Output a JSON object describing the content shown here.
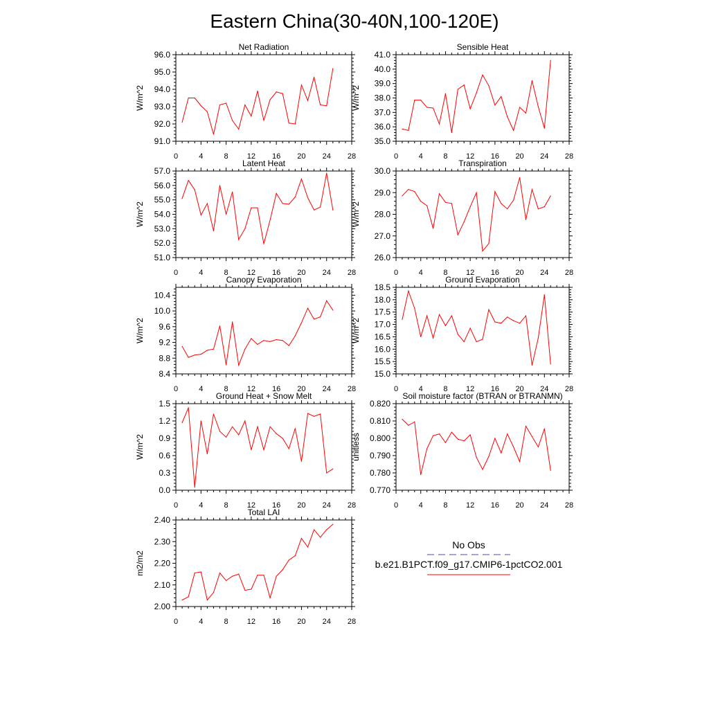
{
  "figure": {
    "title": "Eastern China(30-40N,100-120E)"
  },
  "legend": {
    "entries": [
      {
        "name": "No Obs",
        "color": "#4a4a9a",
        "dash": true
      },
      {
        "name": "b.e21.B1PCT.f09_g17.CMIP6-1pctCO2.001",
        "color": "#ff0000",
        "dash": false
      }
    ]
  },
  "colors": {
    "series": "#ff0000",
    "axes": "#000000"
  },
  "chart_data": [
    {
      "type": "line",
      "title": "Net Radiation",
      "ylabel": "W/m^2",
      "xlim": [
        0,
        28
      ],
      "xticks": [
        0,
        4,
        8,
        12,
        16,
        20,
        24,
        28
      ],
      "ylim": [
        91.0,
        96.0
      ],
      "yticks": [
        "91.0",
        "92.0",
        "93.0",
        "94.0",
        "95.0",
        "96.0"
      ],
      "series": [
        {
          "name": "b.e21.B1PCT.f09_g17.CMIP6-1pctCO2.001",
          "x": [
            1,
            2,
            3,
            4,
            5,
            6,
            7,
            8,
            9,
            10,
            11,
            12,
            13,
            14,
            15,
            16,
            17,
            18,
            19,
            20,
            21,
            22,
            23,
            24,
            25
          ],
          "values": [
            92.1,
            93.5,
            93.5,
            93.05,
            92.7,
            91.4,
            93.1,
            93.2,
            92.2,
            91.7,
            93.1,
            92.45,
            93.9,
            92.2,
            93.4,
            93.85,
            93.75,
            92.05,
            92.0,
            94.25,
            93.35,
            94.7,
            93.1,
            93.05,
            95.2
          ]
        }
      ]
    },
    {
      "type": "line",
      "title": "Sensible Heat",
      "ylabel": "W/m^2",
      "xlim": [
        0,
        28
      ],
      "xticks": [
        0,
        4,
        8,
        12,
        16,
        20,
        24,
        28
      ],
      "ylim": [
        35.0,
        41.0
      ],
      "yticks": [
        "35.0",
        "36.0",
        "37.0",
        "38.0",
        "39.0",
        "40.0",
        "41.0"
      ],
      "series": [
        {
          "name": "b.e21.B1PCT.f09_g17.CMIP6-1pctCO2.001",
          "x": [
            1,
            2,
            3,
            4,
            5,
            6,
            7,
            8,
            9,
            10,
            11,
            12,
            13,
            14,
            15,
            16,
            17,
            18,
            19,
            20,
            21,
            22,
            23,
            24,
            25
          ],
          "values": [
            35.85,
            35.75,
            37.85,
            37.85,
            37.35,
            37.3,
            36.2,
            38.3,
            35.6,
            38.6,
            38.9,
            37.25,
            38.35,
            39.6,
            38.85,
            37.5,
            38.1,
            36.7,
            35.75,
            37.35,
            36.95,
            39.2,
            37.4,
            35.9,
            40.6
          ]
        }
      ]
    },
    {
      "type": "line",
      "title": "Latent Heat",
      "ylabel": "W/m^2",
      "xlim": [
        0,
        28
      ],
      "xticks": [
        0,
        4,
        8,
        12,
        16,
        20,
        24,
        28
      ],
      "ylim": [
        51.0,
        57.0
      ],
      "yticks": [
        "51.0",
        "52.0",
        "53.0",
        "54.0",
        "55.0",
        "56.0",
        "57.0"
      ],
      "series": [
        {
          "name": "b.e21.B1PCT.f09_g17.CMIP6-1pctCO2.001",
          "x": [
            1,
            2,
            3,
            4,
            5,
            6,
            7,
            8,
            9,
            10,
            11,
            12,
            13,
            14,
            15,
            16,
            17,
            18,
            19,
            20,
            21,
            22,
            23,
            24,
            25
          ],
          "values": [
            55.1,
            56.35,
            55.7,
            53.95,
            54.75,
            52.85,
            56.0,
            54.0,
            55.55,
            52.25,
            53.0,
            54.45,
            54.45,
            51.95,
            53.6,
            55.45,
            54.75,
            54.7,
            55.2,
            56.45,
            55.15,
            54.3,
            54.5,
            56.85,
            54.3
          ]
        }
      ]
    },
    {
      "type": "line",
      "title": "Transpiration",
      "ylabel": "W/m^2",
      "xlim": [
        0,
        28
      ],
      "xticks": [
        0,
        4,
        8,
        12,
        16,
        20,
        24,
        28
      ],
      "ylim": [
        26.0,
        30.0
      ],
      "yticks": [
        "26.0",
        "27.0",
        "28.0",
        "29.0",
        "30.0"
      ],
      "series": [
        {
          "name": "b.e21.B1PCT.f09_g17.CMIP6-1pctCO2.001",
          "x": [
            1,
            2,
            3,
            4,
            5,
            6,
            7,
            8,
            9,
            10,
            11,
            12,
            13,
            14,
            15,
            16,
            17,
            18,
            19,
            20,
            21,
            22,
            23,
            24,
            25
          ],
          "values": [
            28.85,
            29.15,
            29.05,
            28.6,
            28.4,
            27.35,
            28.95,
            28.55,
            28.5,
            27.05,
            27.65,
            28.35,
            29.0,
            26.3,
            26.65,
            29.05,
            28.5,
            28.25,
            28.65,
            29.7,
            27.75,
            29.15,
            28.25,
            28.35,
            28.85
          ]
        }
      ]
    },
    {
      "type": "line",
      "title": "Canopy Evaporation",
      "ylabel": "W/m^2",
      "xlim": [
        0,
        28
      ],
      "xticks": [
        0,
        4,
        8,
        12,
        16,
        20,
        24,
        28
      ],
      "ylim": [
        8.4,
        10.6
      ],
      "yticks": [
        "8.4",
        "8.8",
        "9.2",
        "9.6",
        "10.0",
        "10.4"
      ],
      "series": [
        {
          "name": "b.e21.B1PCT.f09_g17.CMIP6-1pctCO2.001",
          "x": [
            1,
            2,
            3,
            4,
            5,
            6,
            7,
            8,
            9,
            10,
            11,
            12,
            13,
            14,
            15,
            16,
            17,
            18,
            19,
            20,
            21,
            22,
            23,
            24,
            25
          ],
          "values": [
            9.1,
            8.82,
            8.88,
            8.9,
            9.0,
            9.03,
            9.62,
            8.63,
            9.72,
            8.62,
            9.03,
            9.3,
            9.15,
            9.25,
            9.22,
            9.27,
            9.25,
            9.12,
            9.37,
            9.7,
            10.07,
            9.79,
            9.85,
            10.26,
            10.02
          ]
        }
      ]
    },
    {
      "type": "line",
      "title": "Ground Evaporation",
      "ylabel": "W/m^2",
      "xlim": [
        0,
        28
      ],
      "xticks": [
        0,
        4,
        8,
        12,
        16,
        20,
        24,
        28
      ],
      "ylim": [
        15.0,
        18.5
      ],
      "yticks": [
        "15.0",
        "15.5",
        "16.0",
        "16.5",
        "17.0",
        "17.5",
        "18.0",
        "18.5"
      ],
      "series": [
        {
          "name": "b.e21.B1PCT.f09_g17.CMIP6-1pctCO2.001",
          "x": [
            1,
            2,
            3,
            4,
            5,
            6,
            7,
            8,
            9,
            10,
            11,
            12,
            13,
            14,
            15,
            16,
            17,
            18,
            19,
            20,
            21,
            22,
            23,
            24,
            25
          ],
          "values": [
            17.2,
            18.35,
            17.65,
            16.5,
            17.35,
            16.45,
            17.4,
            16.95,
            17.35,
            16.6,
            16.3,
            16.85,
            16.3,
            16.4,
            17.6,
            17.1,
            17.05,
            17.3,
            17.15,
            17.05,
            17.35,
            15.35,
            16.45,
            18.2,
            15.4
          ]
        }
      ]
    },
    {
      "type": "line",
      "title": "Ground Heat + Snow Melt",
      "ylabel": "W/m^2",
      "xlim": [
        0,
        28
      ],
      "xticks": [
        0,
        4,
        8,
        12,
        16,
        20,
        24,
        28
      ],
      "ylim": [
        0.0,
        1.5
      ],
      "yticks": [
        "0.0",
        "0.3",
        "0.6",
        "0.9",
        "1.2",
        "1.5"
      ],
      "series": [
        {
          "name": "b.e21.B1PCT.f09_g17.CMIP6-1pctCO2.001",
          "x": [
            1,
            2,
            3,
            4,
            5,
            6,
            7,
            8,
            9,
            10,
            11,
            12,
            13,
            14,
            15,
            16,
            17,
            18,
            19,
            20,
            21,
            22,
            23,
            24,
            25
          ],
          "values": [
            1.17,
            1.43,
            0.05,
            1.2,
            0.63,
            1.32,
            1.02,
            0.92,
            1.1,
            0.96,
            1.2,
            0.7,
            1.1,
            0.7,
            1.1,
            0.98,
            0.9,
            0.72,
            1.07,
            0.5,
            1.33,
            1.28,
            1.32,
            0.3,
            0.37
          ]
        }
      ]
    },
    {
      "type": "line",
      "title": "Soil moisture factor (BTRAN or BTRANMN)",
      "ylabel": "unitless",
      "xlim": [
        0,
        28
      ],
      "xticks": [
        0,
        4,
        8,
        12,
        16,
        20,
        24,
        28
      ],
      "ylim": [
        0.77,
        0.82
      ],
      "yticks": [
        "0.770",
        "0.780",
        "0.790",
        "0.800",
        "0.810",
        "0.820"
      ],
      "series": [
        {
          "name": "b.e21.B1PCT.f09_g17.CMIP6-1pctCO2.001",
          "x": [
            1,
            2,
            3,
            4,
            5,
            6,
            7,
            8,
            9,
            10,
            11,
            12,
            13,
            14,
            15,
            16,
            17,
            18,
            19,
            20,
            21,
            22,
            23,
            24,
            25
          ],
          "values": [
            0.811,
            0.8075,
            0.8095,
            0.779,
            0.794,
            0.8015,
            0.8025,
            0.7975,
            0.8035,
            0.7995,
            0.7985,
            0.802,
            0.789,
            0.782,
            0.7895,
            0.8,
            0.7915,
            0.8025,
            0.795,
            0.7865,
            0.807,
            0.801,
            0.795,
            0.8055,
            0.7815
          ]
        }
      ]
    },
    {
      "type": "line",
      "title": "Total LAI",
      "ylabel": "m2/m2",
      "xlim": [
        0,
        28
      ],
      "xticks": [
        0,
        4,
        8,
        12,
        16,
        20,
        24,
        28
      ],
      "ylim": [
        2.0,
        2.4
      ],
      "yticks": [
        "2.00",
        "2.10",
        "2.20",
        "2.30",
        "2.40"
      ],
      "series": [
        {
          "name": "b.e21.B1PCT.f09_g17.CMIP6-1pctCO2.001",
          "x": [
            1,
            2,
            3,
            4,
            5,
            6,
            7,
            8,
            9,
            10,
            11,
            12,
            13,
            14,
            15,
            16,
            17,
            18,
            19,
            20,
            21,
            22,
            23,
            24,
            25
          ],
          "values": [
            2.03,
            2.045,
            2.155,
            2.16,
            2.03,
            2.065,
            2.155,
            2.12,
            2.14,
            2.15,
            2.075,
            2.08,
            2.145,
            2.145,
            2.04,
            2.14,
            2.17,
            2.215,
            2.235,
            2.315,
            2.275,
            2.355,
            2.32,
            2.355,
            2.38
          ]
        }
      ]
    }
  ]
}
